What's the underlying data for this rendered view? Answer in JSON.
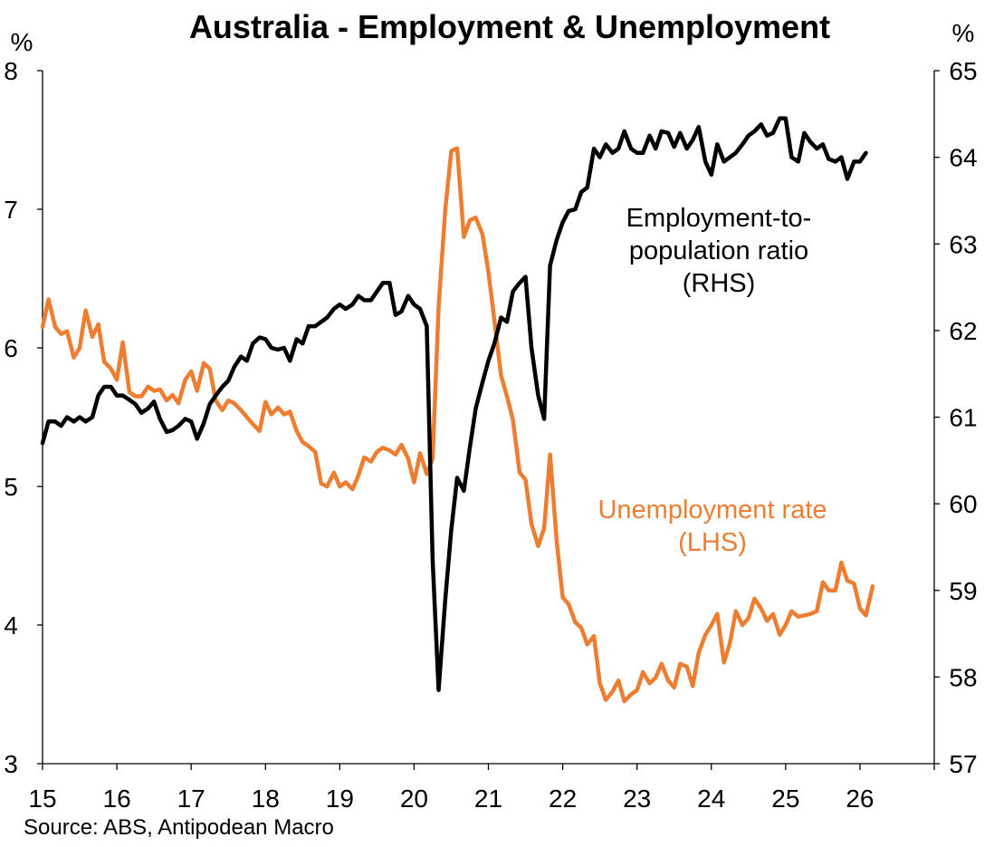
{
  "chart_data": {
    "type": "line",
    "title": "Australia - Employment & Unemployment",
    "source": "Source: ABS, Antipodean Macro",
    "left_axis": {
      "unit": "%",
      "range": [
        3,
        8
      ],
      "ticks": [
        "3",
        "4",
        "5",
        "6",
        "7",
        "8"
      ]
    },
    "right_axis": {
      "unit": "%",
      "range": [
        57,
        65
      ],
      "ticks": [
        "57",
        "58",
        "59",
        "60",
        "61",
        "62",
        "63",
        "64",
        "65"
      ]
    },
    "x_axis": {
      "range": [
        2015,
        2027
      ],
      "ticks": [
        "15",
        "16",
        "17",
        "18",
        "19",
        "20",
        "21",
        "22",
        "23",
        "24",
        "25",
        "26"
      ]
    },
    "colors": {
      "unemployment": "#ED7D31",
      "employment": "#000000"
    },
    "series": [
      {
        "key": "unemployment",
        "axis": "left",
        "annotation": [
          "Unemployment rate",
          "(LHS)"
        ],
        "points": [
          [
            2015.0,
            6.15
          ],
          [
            2015.08,
            6.35
          ],
          [
            2015.17,
            6.15
          ],
          [
            2015.25,
            6.1
          ],
          [
            2015.33,
            6.12
          ],
          [
            2015.42,
            5.93
          ],
          [
            2015.5,
            6.0
          ],
          [
            2015.58,
            6.27
          ],
          [
            2015.67,
            6.08
          ],
          [
            2015.75,
            6.17
          ],
          [
            2015.83,
            5.9
          ],
          [
            2015.92,
            5.85
          ],
          [
            2016.0,
            5.77
          ],
          [
            2016.08,
            6.04
          ],
          [
            2016.17,
            5.68
          ],
          [
            2016.25,
            5.65
          ],
          [
            2016.33,
            5.65
          ],
          [
            2016.42,
            5.72
          ],
          [
            2016.5,
            5.69
          ],
          [
            2016.58,
            5.7
          ],
          [
            2016.67,
            5.62
          ],
          [
            2016.75,
            5.66
          ],
          [
            2016.83,
            5.6
          ],
          [
            2016.92,
            5.77
          ],
          [
            2017.0,
            5.83
          ],
          [
            2017.08,
            5.69
          ],
          [
            2017.17,
            5.89
          ],
          [
            2017.25,
            5.85
          ],
          [
            2017.33,
            5.62
          ],
          [
            2017.42,
            5.55
          ],
          [
            2017.5,
            5.62
          ],
          [
            2017.58,
            5.6
          ],
          [
            2017.67,
            5.55
          ],
          [
            2017.75,
            5.5
          ],
          [
            2017.83,
            5.45
          ],
          [
            2017.92,
            5.4
          ],
          [
            2018.0,
            5.61
          ],
          [
            2018.08,
            5.52
          ],
          [
            2018.17,
            5.57
          ],
          [
            2018.25,
            5.52
          ],
          [
            2018.33,
            5.54
          ],
          [
            2018.42,
            5.4
          ],
          [
            2018.5,
            5.32
          ],
          [
            2018.58,
            5.29
          ],
          [
            2018.67,
            5.25
          ],
          [
            2018.75,
            5.02
          ],
          [
            2018.83,
            5.0
          ],
          [
            2018.92,
            5.1
          ],
          [
            2019.0,
            5.0
          ],
          [
            2019.08,
            5.03
          ],
          [
            2019.17,
            4.98
          ],
          [
            2019.25,
            5.08
          ],
          [
            2019.33,
            5.21
          ],
          [
            2019.42,
            5.18
          ],
          [
            2019.5,
            5.25
          ],
          [
            2019.58,
            5.28
          ],
          [
            2019.67,
            5.26
          ],
          [
            2019.75,
            5.23
          ],
          [
            2019.83,
            5.3
          ],
          [
            2019.92,
            5.2
          ],
          [
            2020.0,
            5.03
          ],
          [
            2020.08,
            5.24
          ],
          [
            2020.17,
            5.09
          ],
          [
            2020.25,
            5.2
          ],
          [
            2020.33,
            6.3
          ],
          [
            2020.42,
            7.0
          ],
          [
            2020.5,
            7.42
          ],
          [
            2020.58,
            7.44
          ],
          [
            2020.67,
            6.8
          ],
          [
            2020.75,
            6.92
          ],
          [
            2020.83,
            6.94
          ],
          [
            2020.92,
            6.82
          ],
          [
            2021.0,
            6.55
          ],
          [
            2021.08,
            6.2
          ],
          [
            2021.17,
            5.8
          ],
          [
            2021.25,
            5.65
          ],
          [
            2021.33,
            5.48
          ],
          [
            2021.42,
            5.1
          ],
          [
            2021.5,
            5.05
          ],
          [
            2021.58,
            4.73
          ],
          [
            2021.67,
            4.57
          ],
          [
            2021.75,
            4.7
          ],
          [
            2021.83,
            5.23
          ],
          [
            2021.92,
            4.6
          ],
          [
            2022.0,
            4.2
          ],
          [
            2022.08,
            4.15
          ],
          [
            2022.17,
            4.02
          ],
          [
            2022.25,
            3.98
          ],
          [
            2022.33,
            3.86
          ],
          [
            2022.42,
            3.92
          ],
          [
            2022.5,
            3.58
          ],
          [
            2022.58,
            3.46
          ],
          [
            2022.67,
            3.52
          ],
          [
            2022.75,
            3.6
          ],
          [
            2022.83,
            3.45
          ],
          [
            2022.92,
            3.5
          ],
          [
            2023.0,
            3.53
          ],
          [
            2023.08,
            3.66
          ],
          [
            2023.17,
            3.58
          ],
          [
            2023.25,
            3.62
          ],
          [
            2023.33,
            3.72
          ],
          [
            2023.42,
            3.6
          ],
          [
            2023.5,
            3.55
          ],
          [
            2023.58,
            3.72
          ],
          [
            2023.67,
            3.7
          ],
          [
            2023.75,
            3.56
          ],
          [
            2023.83,
            3.8
          ],
          [
            2023.92,
            3.93
          ],
          [
            2024.0,
            4.0
          ],
          [
            2024.08,
            4.08
          ],
          [
            2024.17,
            3.73
          ],
          [
            2024.25,
            3.87
          ],
          [
            2024.33,
            4.1
          ],
          [
            2024.42,
            4.0
          ],
          [
            2024.5,
            4.05
          ],
          [
            2024.58,
            4.19
          ],
          [
            2024.67,
            4.12
          ],
          [
            2024.75,
            4.03
          ],
          [
            2024.83,
            4.08
          ],
          [
            2024.92,
            3.93
          ],
          [
            2025.0,
            4.0
          ],
          [
            2025.08,
            4.1
          ],
          [
            2025.17,
            4.06
          ],
          [
            2025.25,
            4.07
          ],
          [
            2025.33,
            4.08
          ],
          [
            2025.42,
            4.1
          ],
          [
            2025.5,
            4.31
          ],
          [
            2025.58,
            4.25
          ],
          [
            2025.67,
            4.25
          ],
          [
            2025.75,
            4.45
          ],
          [
            2025.83,
            4.32
          ],
          [
            2025.92,
            4.3
          ],
          [
            2026.0,
            4.12
          ],
          [
            2026.08,
            4.07
          ],
          [
            2026.17,
            4.28
          ]
        ]
      },
      {
        "key": "employment",
        "axis": "right",
        "annotation": [
          "Employment-to-",
          "population ratio",
          "(RHS)"
        ],
        "points": [
          [
            2015.0,
            60.7
          ],
          [
            2015.08,
            60.95
          ],
          [
            2015.17,
            60.95
          ],
          [
            2015.25,
            60.9
          ],
          [
            2015.33,
            61.0
          ],
          [
            2015.42,
            60.95
          ],
          [
            2015.5,
            61.0
          ],
          [
            2015.58,
            60.95
          ],
          [
            2015.67,
            61.0
          ],
          [
            2015.75,
            61.25
          ],
          [
            2015.83,
            61.35
          ],
          [
            2015.92,
            61.35
          ],
          [
            2016.0,
            61.25
          ],
          [
            2016.08,
            61.25
          ],
          [
            2016.17,
            61.2
          ],
          [
            2016.25,
            61.15
          ],
          [
            2016.33,
            61.05
          ],
          [
            2016.42,
            61.1
          ],
          [
            2016.5,
            61.18
          ],
          [
            2016.58,
            60.98
          ],
          [
            2016.67,
            60.83
          ],
          [
            2016.75,
            60.85
          ],
          [
            2016.83,
            60.9
          ],
          [
            2016.92,
            60.98
          ],
          [
            2017.0,
            60.95
          ],
          [
            2017.08,
            60.75
          ],
          [
            2017.17,
            60.93
          ],
          [
            2017.25,
            61.15
          ],
          [
            2017.33,
            61.25
          ],
          [
            2017.42,
            61.35
          ],
          [
            2017.5,
            61.42
          ],
          [
            2017.58,
            61.58
          ],
          [
            2017.67,
            61.7
          ],
          [
            2017.75,
            61.65
          ],
          [
            2017.83,
            61.85
          ],
          [
            2017.92,
            61.92
          ],
          [
            2018.0,
            61.9
          ],
          [
            2018.08,
            61.8
          ],
          [
            2018.17,
            61.78
          ],
          [
            2018.25,
            61.8
          ],
          [
            2018.33,
            61.65
          ],
          [
            2018.42,
            61.9
          ],
          [
            2018.5,
            61.85
          ],
          [
            2018.58,
            62.05
          ],
          [
            2018.67,
            62.05
          ],
          [
            2018.75,
            62.1
          ],
          [
            2018.83,
            62.15
          ],
          [
            2018.92,
            62.25
          ],
          [
            2019.0,
            62.3
          ],
          [
            2019.08,
            62.25
          ],
          [
            2019.17,
            62.3
          ],
          [
            2019.25,
            62.4
          ],
          [
            2019.33,
            62.35
          ],
          [
            2019.42,
            62.35
          ],
          [
            2019.5,
            62.45
          ],
          [
            2019.58,
            62.55
          ],
          [
            2019.67,
            62.55
          ],
          [
            2019.75,
            62.18
          ],
          [
            2019.83,
            62.22
          ],
          [
            2019.92,
            62.4
          ],
          [
            2020.0,
            62.3
          ],
          [
            2020.08,
            62.25
          ],
          [
            2020.17,
            62.05
          ],
          [
            2020.25,
            59.35
          ],
          [
            2020.33,
            57.85
          ],
          [
            2020.42,
            58.9
          ],
          [
            2020.5,
            59.7
          ],
          [
            2020.58,
            60.3
          ],
          [
            2020.67,
            60.15
          ],
          [
            2020.75,
            60.65
          ],
          [
            2020.83,
            61.1
          ],
          [
            2020.92,
            61.4
          ],
          [
            2021.0,
            61.65
          ],
          [
            2021.08,
            61.85
          ],
          [
            2021.17,
            62.15
          ],
          [
            2021.25,
            62.1
          ],
          [
            2021.33,
            62.45
          ],
          [
            2021.42,
            62.55
          ],
          [
            2021.5,
            62.62
          ],
          [
            2021.58,
            61.8
          ],
          [
            2021.67,
            61.25
          ],
          [
            2021.75,
            60.98
          ],
          [
            2021.83,
            62.75
          ],
          [
            2021.92,
            63.05
          ],
          [
            2022.0,
            63.25
          ],
          [
            2022.08,
            63.38
          ],
          [
            2022.17,
            63.4
          ],
          [
            2022.25,
            63.6
          ],
          [
            2022.33,
            63.65
          ],
          [
            2022.42,
            64.1
          ],
          [
            2022.5,
            64.0
          ],
          [
            2022.58,
            64.15
          ],
          [
            2022.67,
            64.05
          ],
          [
            2022.75,
            64.1
          ],
          [
            2022.83,
            64.3
          ],
          [
            2022.92,
            64.1
          ],
          [
            2023.0,
            64.05
          ],
          [
            2023.08,
            64.05
          ],
          [
            2023.17,
            64.25
          ],
          [
            2023.25,
            64.1
          ],
          [
            2023.33,
            64.3
          ],
          [
            2023.42,
            64.28
          ],
          [
            2023.5,
            64.12
          ],
          [
            2023.58,
            64.28
          ],
          [
            2023.67,
            64.1
          ],
          [
            2023.75,
            64.2
          ],
          [
            2023.83,
            64.35
          ],
          [
            2023.92,
            63.95
          ],
          [
            2024.0,
            63.8
          ],
          [
            2024.08,
            64.15
          ],
          [
            2024.17,
            63.95
          ],
          [
            2024.25,
            64.0
          ],
          [
            2024.33,
            64.05
          ],
          [
            2024.42,
            64.15
          ],
          [
            2024.5,
            64.25
          ],
          [
            2024.58,
            64.3
          ],
          [
            2024.67,
            64.38
          ],
          [
            2024.75,
            64.25
          ],
          [
            2024.83,
            64.28
          ],
          [
            2024.92,
            64.45
          ],
          [
            2025.0,
            64.45
          ],
          [
            2025.08,
            64.0
          ],
          [
            2025.17,
            63.95
          ],
          [
            2025.25,
            64.28
          ],
          [
            2025.33,
            64.18
          ],
          [
            2025.42,
            64.1
          ],
          [
            2025.5,
            64.15
          ],
          [
            2025.58,
            63.98
          ],
          [
            2025.67,
            63.95
          ],
          [
            2025.75,
            64.0
          ],
          [
            2025.83,
            63.75
          ],
          [
            2025.92,
            63.95
          ],
          [
            2026.0,
            63.95
          ],
          [
            2026.08,
            64.05
          ]
        ]
      }
    ]
  }
}
